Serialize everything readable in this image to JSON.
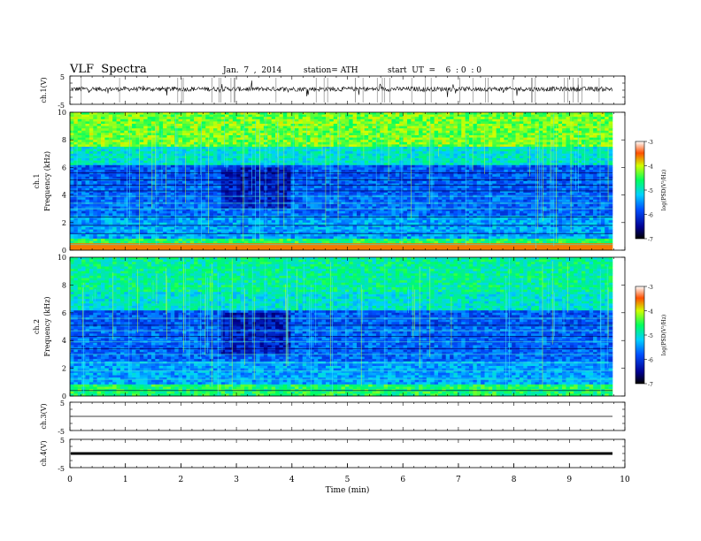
{
  "header": {
    "title": "VLF  Spectra",
    "date": "Jan.  7  ,  2014",
    "station": "station= ATH",
    "start": "start  UT  =    6  : 0  : 0"
  },
  "chart_data": [
    {
      "type": "line",
      "id": "ch1-waveform",
      "ylabel": "ch.1(V)",
      "ylim": [
        -5,
        5
      ],
      "yticks": [
        "5",
        "-5"
      ],
      "description_level": 0.4
    },
    {
      "type": "heatmap",
      "id": "ch1-spectrogram",
      "ylabel": "ch.1  Frequency  (kHz)",
      "ylabel_ch": "ch.1",
      "ylabel_freq": "Frequency  (kHz)",
      "ylim": [
        0,
        10
      ],
      "yticks": [
        "0",
        "2",
        "4",
        "6",
        "8",
        "10"
      ],
      "colorbar": {
        "label": "log(PSD(V²/Hz)",
        "range": [
          -7,
          -3
        ],
        "ticks": [
          "-3",
          "-4",
          "-5",
          "-6",
          "-7"
        ]
      }
    },
    {
      "type": "heatmap",
      "id": "ch2-spectrogram",
      "ylabel": "ch.2  Frequency  (kHz)",
      "ylabel_ch": "ch.2",
      "ylabel_freq": "Frequency  (kHz)",
      "ylim": [
        0,
        10
      ],
      "yticks": [
        "0",
        "2",
        "4",
        "6",
        "8",
        "10"
      ],
      "colorbar": {
        "label": "log(PSD(V²/Hz)",
        "range": [
          -7,
          -3
        ],
        "ticks": [
          "-3",
          "-4",
          "-5",
          "-6",
          "-7"
        ]
      }
    },
    {
      "type": "line",
      "id": "ch3-waveform",
      "ylabel": "ch.3(V)",
      "ylim": [
        -5,
        5
      ],
      "yticks": [
        "5",
        "-5"
      ],
      "level": 0
    },
    {
      "type": "line",
      "id": "ch4-waveform",
      "ylabel": "ch.4(V)",
      "ylim": [
        -5,
        5
      ],
      "yticks": [
        "5",
        "-5"
      ],
      "level": 0
    }
  ],
  "x_axis": {
    "label": "Time  (min)",
    "range": [
      0,
      10
    ],
    "ticks": [
      "0",
      "1",
      "2",
      "3",
      "4",
      "5",
      "6",
      "7",
      "8",
      "9",
      "10"
    ]
  },
  "colors": {
    "low": "#000080",
    "mid": "#00ff80",
    "high": "#ff0000"
  }
}
